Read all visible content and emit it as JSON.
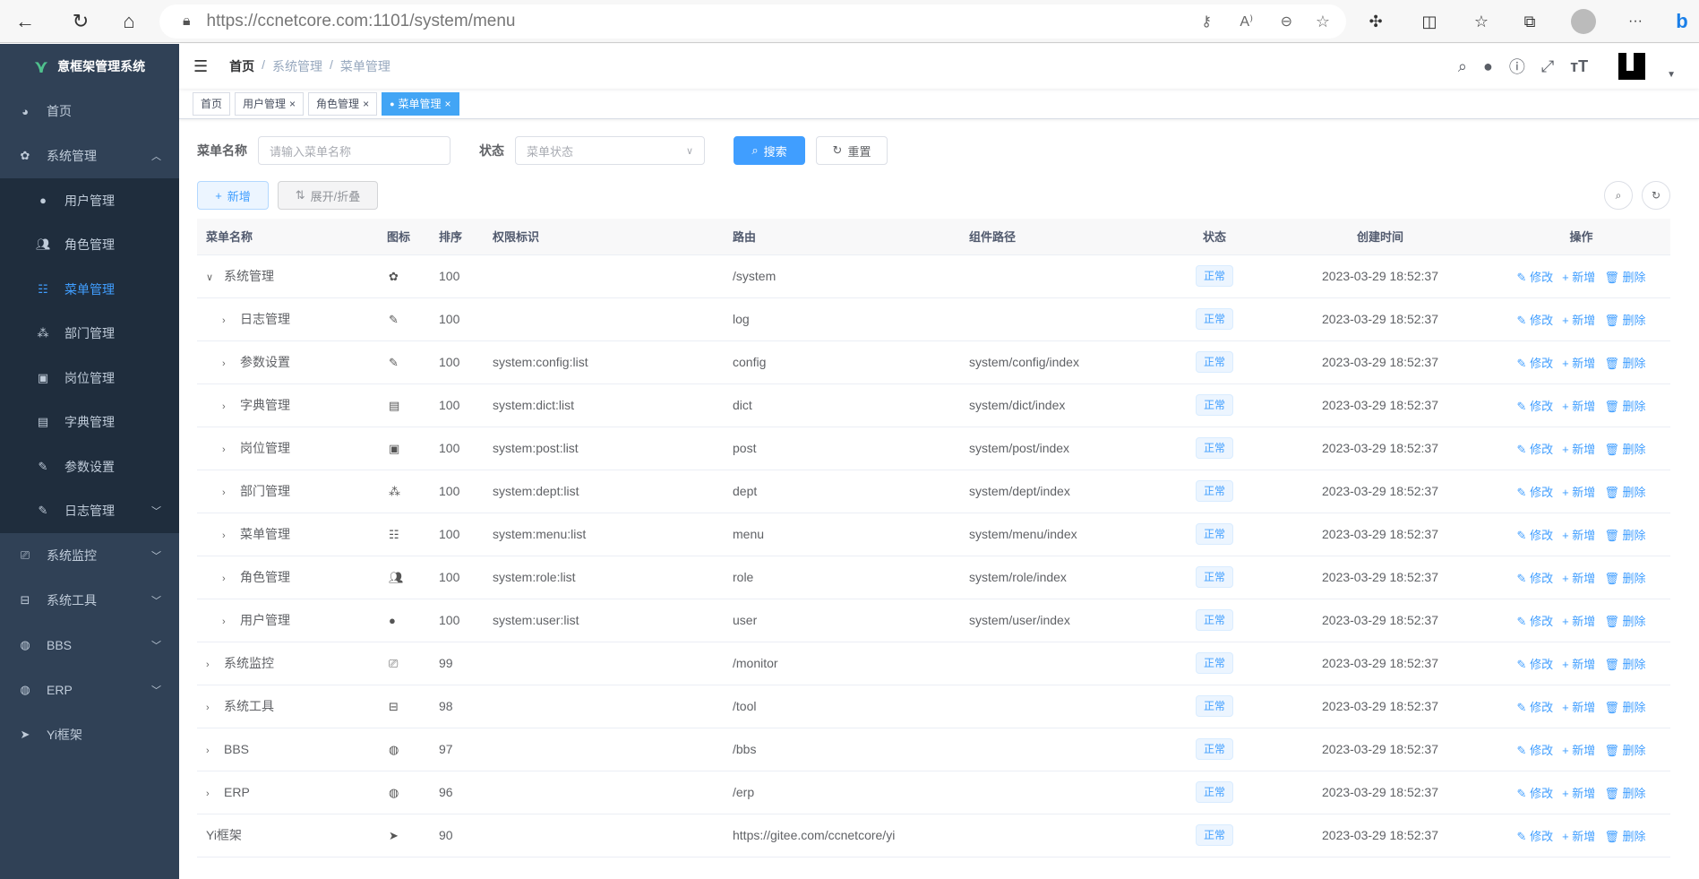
{
  "browser": {
    "url_host": "https://ccnetcore.com",
    "url_path": ":1101/system/menu",
    "icons": [
      "back-icon",
      "refresh-icon",
      "home-icon",
      "lock-icon",
      "key-icon",
      "read-aloud-icon",
      "zoom-out-icon",
      "favorite-add-icon",
      "extensions-icon",
      "split-screen-icon",
      "favorites-icon",
      "collections-icon",
      "profile-icon",
      "more-icon",
      "bing-icon"
    ],
    "more": "···"
  },
  "sidebar": {
    "title": "意框架管理系统",
    "items": [
      {
        "label": "首页",
        "icon": "dashboard-icon"
      },
      {
        "label": "系统管理",
        "icon": "gear-icon",
        "expanded": true,
        "children": [
          {
            "label": "用户管理",
            "icon": "user-icon"
          },
          {
            "label": "角色管理",
            "icon": "peoples-icon"
          },
          {
            "label": "菜单管理",
            "icon": "tree-table-icon",
            "active": true
          },
          {
            "label": "部门管理",
            "icon": "tree-icon"
          },
          {
            "label": "岗位管理",
            "icon": "post-icon"
          },
          {
            "label": "字典管理",
            "icon": "dict-icon"
          },
          {
            "label": "参数设置",
            "icon": "edit-icon"
          },
          {
            "label": "日志管理",
            "icon": "log-icon",
            "has_children": true
          }
        ]
      },
      {
        "label": "系统监控",
        "icon": "monitor-icon",
        "has_children": true
      },
      {
        "label": "系统工具",
        "icon": "tool-icon",
        "has_children": true
      },
      {
        "label": "BBS",
        "icon": "globe-icon",
        "has_children": true
      },
      {
        "label": "ERP",
        "icon": "globe-icon",
        "has_children": true
      },
      {
        "label": "Yi框架",
        "icon": "send-icon"
      }
    ]
  },
  "breadcrumb": [
    "首页",
    "系统管理",
    "菜单管理"
  ],
  "tags": [
    {
      "label": "首页"
    },
    {
      "label": "用户管理",
      "closable": true
    },
    {
      "label": "角色管理",
      "closable": true
    },
    {
      "label": "菜单管理",
      "closable": true,
      "active": true
    }
  ],
  "search": {
    "name_label": "菜单名称",
    "name_placeholder": "请输入菜单名称",
    "status_label": "状态",
    "status_placeholder": "菜单状态",
    "search_btn": "搜索",
    "reset_btn": "重置"
  },
  "toolbar": {
    "add": "新增",
    "expand": "展开/折叠"
  },
  "table": {
    "headers": [
      "菜单名称",
      "图标",
      "排序",
      "权限标识",
      "路由",
      "组件路径",
      "状态",
      "创建时间",
      "操作"
    ],
    "actions": [
      "修改",
      "新增",
      "删除"
    ],
    "rows": [
      {
        "name": "系统管理",
        "level": 0,
        "expander": "open",
        "icon": "gear-icon",
        "order": "100",
        "perms": "",
        "path": "/system",
        "component": "",
        "status": "正常",
        "time": "2023-03-29 18:52:37"
      },
      {
        "name": "日志管理",
        "level": 1,
        "expander": "closed",
        "icon": "log-icon",
        "order": "100",
        "perms": "",
        "path": "log",
        "component": "",
        "status": "正常",
        "time": "2023-03-29 18:52:37"
      },
      {
        "name": "参数设置",
        "level": 1,
        "expander": "closed",
        "icon": "edit-icon",
        "order": "100",
        "perms": "system:config:list",
        "path": "config",
        "component": "system/config/index",
        "status": "正常",
        "time": "2023-03-29 18:52:37"
      },
      {
        "name": "字典管理",
        "level": 1,
        "expander": "closed",
        "icon": "dict-icon",
        "order": "100",
        "perms": "system:dict:list",
        "path": "dict",
        "component": "system/dict/index",
        "status": "正常",
        "time": "2023-03-29 18:52:37"
      },
      {
        "name": "岗位管理",
        "level": 1,
        "expander": "closed",
        "icon": "post-icon",
        "order": "100",
        "perms": "system:post:list",
        "path": "post",
        "component": "system/post/index",
        "status": "正常",
        "time": "2023-03-29 18:52:37"
      },
      {
        "name": "部门管理",
        "level": 1,
        "expander": "closed",
        "icon": "tree-icon",
        "order": "100",
        "perms": "system:dept:list",
        "path": "dept",
        "component": "system/dept/index",
        "status": "正常",
        "time": "2023-03-29 18:52:37"
      },
      {
        "name": "菜单管理",
        "level": 1,
        "expander": "closed",
        "icon": "tree-table-icon",
        "order": "100",
        "perms": "system:menu:list",
        "path": "menu",
        "component": "system/menu/index",
        "status": "正常",
        "time": "2023-03-29 18:52:37"
      },
      {
        "name": "角色管理",
        "level": 1,
        "expander": "closed",
        "icon": "peoples-icon",
        "order": "100",
        "perms": "system:role:list",
        "path": "role",
        "component": "system/role/index",
        "status": "正常",
        "time": "2023-03-29 18:52:37"
      },
      {
        "name": "用户管理",
        "level": 1,
        "expander": "closed",
        "icon": "user-icon",
        "order": "100",
        "perms": "system:user:list",
        "path": "user",
        "component": "system/user/index",
        "status": "正常",
        "time": "2023-03-29 18:52:37"
      },
      {
        "name": "系统监控",
        "level": 0,
        "expander": "closed",
        "icon": "monitor-icon",
        "order": "99",
        "perms": "",
        "path": "/monitor",
        "component": "",
        "status": "正常",
        "time": "2023-03-29 18:52:37"
      },
      {
        "name": "系统工具",
        "level": 0,
        "expander": "closed",
        "icon": "tool-icon",
        "order": "98",
        "perms": "",
        "path": "/tool",
        "component": "",
        "status": "正常",
        "time": "2023-03-29 18:52:37"
      },
      {
        "name": "BBS",
        "level": 0,
        "expander": "closed",
        "icon": "globe-icon",
        "order": "97",
        "perms": "",
        "path": "/bbs",
        "component": "",
        "status": "正常",
        "time": "2023-03-29 18:52:37"
      },
      {
        "name": "ERP",
        "level": 0,
        "expander": "closed",
        "icon": "globe-icon",
        "order": "96",
        "perms": "",
        "path": "/erp",
        "component": "",
        "status": "正常",
        "time": "2023-03-29 18:52:37"
      },
      {
        "name": "Yi框架",
        "level": 0,
        "expander": "none",
        "icon": "send-icon",
        "order": "90",
        "perms": "",
        "path": "https://gitee.com/ccnetcore/yi",
        "component": "",
        "status": "正常",
        "time": "2023-03-29 18:52:37"
      }
    ]
  },
  "colors": {
    "sidebar": "#304156",
    "submenu": "#1f2d3d",
    "primary": "#409eff",
    "tag_active": "#42a5f5"
  }
}
